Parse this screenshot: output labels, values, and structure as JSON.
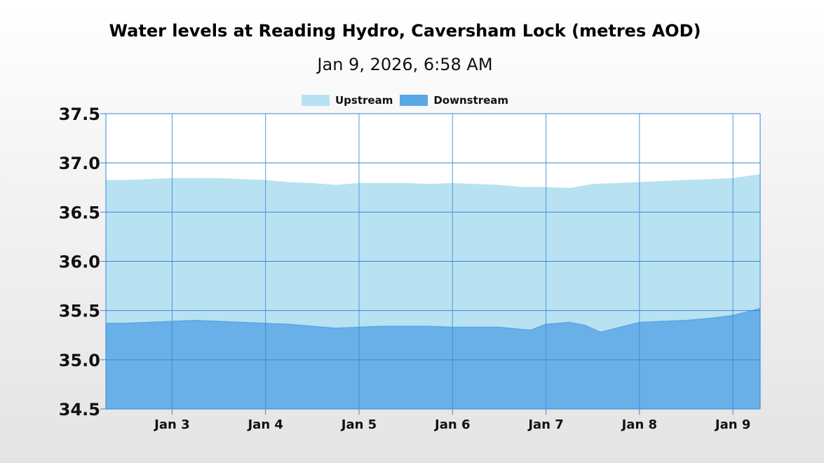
{
  "chart_data": {
    "type": "area",
    "title": "Water levels at Reading Hydro, Caversham Lock (metres AOD)",
    "subtitle": "Jan 9, 2026, 6:58 AM",
    "xlabel": "",
    "ylabel": "",
    "ylim": [
      34.5,
      37.5
    ],
    "xlim": [
      "2026-01-02T07:00",
      "2026-01-09T07:00"
    ],
    "yticks": [
      "34.5",
      "35.0",
      "35.5",
      "36.0",
      "36.5",
      "37.0",
      "37.5"
    ],
    "xticks": [
      {
        "label": "Jan 3",
        "date": "2026-01-03"
      },
      {
        "label": "Jan 4",
        "date": "2026-01-04"
      },
      {
        "label": "Jan 5",
        "date": "2026-01-05"
      },
      {
        "label": "Jan 6",
        "date": "2026-01-06"
      },
      {
        "label": "Jan 7",
        "date": "2026-01-07"
      },
      {
        "label": "Jan 8",
        "date": "2026-01-08"
      },
      {
        "label": "Jan 9",
        "date": "2026-01-09"
      }
    ],
    "grid": true,
    "legend_position": "top-center",
    "series": [
      {
        "name": "Upstream",
        "color": "#b8e2f1",
        "points": [
          [
            "2026-01-02T07:00",
            36.82
          ],
          [
            "2026-01-02T12:00",
            36.82
          ],
          [
            "2026-01-02T18:00",
            36.83
          ],
          [
            "2026-01-03T00:00",
            36.84
          ],
          [
            "2026-01-03T06:00",
            36.84
          ],
          [
            "2026-01-03T12:00",
            36.84
          ],
          [
            "2026-01-03T18:00",
            36.83
          ],
          [
            "2026-01-04T00:00",
            36.82
          ],
          [
            "2026-01-04T06:00",
            36.8
          ],
          [
            "2026-01-04T12:00",
            36.79
          ],
          [
            "2026-01-04T18:00",
            36.77
          ],
          [
            "2026-01-05T00:00",
            36.79
          ],
          [
            "2026-01-05T06:00",
            36.79
          ],
          [
            "2026-01-05T12:00",
            36.79
          ],
          [
            "2026-01-05T18:00",
            36.78
          ],
          [
            "2026-01-06T00:00",
            36.79
          ],
          [
            "2026-01-06T06:00",
            36.78
          ],
          [
            "2026-01-06T12:00",
            36.77
          ],
          [
            "2026-01-06T18:00",
            36.75
          ],
          [
            "2026-01-07T00:00",
            36.75
          ],
          [
            "2026-01-07T06:00",
            36.74
          ],
          [
            "2026-01-07T12:00",
            36.78
          ],
          [
            "2026-01-07T18:00",
            36.79
          ],
          [
            "2026-01-08T00:00",
            36.8
          ],
          [
            "2026-01-08T06:00",
            36.81
          ],
          [
            "2026-01-08T12:00",
            36.82
          ],
          [
            "2026-01-08T18:00",
            36.83
          ],
          [
            "2026-01-09T00:00",
            36.84
          ],
          [
            "2026-01-09T07:00",
            36.88
          ]
        ]
      },
      {
        "name": "Downstream",
        "color": "#5aa7e6",
        "points": [
          [
            "2026-01-02T07:00",
            35.37
          ],
          [
            "2026-01-02T12:00",
            35.37
          ],
          [
            "2026-01-02T18:00",
            35.38
          ],
          [
            "2026-01-03T00:00",
            35.39
          ],
          [
            "2026-01-03T06:00",
            35.4
          ],
          [
            "2026-01-03T12:00",
            35.39
          ],
          [
            "2026-01-03T18:00",
            35.38
          ],
          [
            "2026-01-04T00:00",
            35.37
          ],
          [
            "2026-01-04T06:00",
            35.36
          ],
          [
            "2026-01-04T12:00",
            35.34
          ],
          [
            "2026-01-04T18:00",
            35.32
          ],
          [
            "2026-01-05T00:00",
            35.33
          ],
          [
            "2026-01-05T06:00",
            35.34
          ],
          [
            "2026-01-05T12:00",
            35.34
          ],
          [
            "2026-01-05T18:00",
            35.34
          ],
          [
            "2026-01-06T00:00",
            35.33
          ],
          [
            "2026-01-06T06:00",
            35.33
          ],
          [
            "2026-01-06T12:00",
            35.33
          ],
          [
            "2026-01-06T20:00",
            35.3
          ],
          [
            "2026-01-07T00:00",
            35.36
          ],
          [
            "2026-01-07T06:00",
            35.38
          ],
          [
            "2026-01-07T10:00",
            35.35
          ],
          [
            "2026-01-07T14:00",
            35.28
          ],
          [
            "2026-01-07T20:00",
            35.34
          ],
          [
            "2026-01-08T00:00",
            35.38
          ],
          [
            "2026-01-08T06:00",
            35.39
          ],
          [
            "2026-01-08T12:00",
            35.4
          ],
          [
            "2026-01-08T18:00",
            35.42
          ],
          [
            "2026-01-09T00:00",
            35.45
          ],
          [
            "2026-01-09T07:00",
            35.52
          ]
        ]
      }
    ]
  }
}
